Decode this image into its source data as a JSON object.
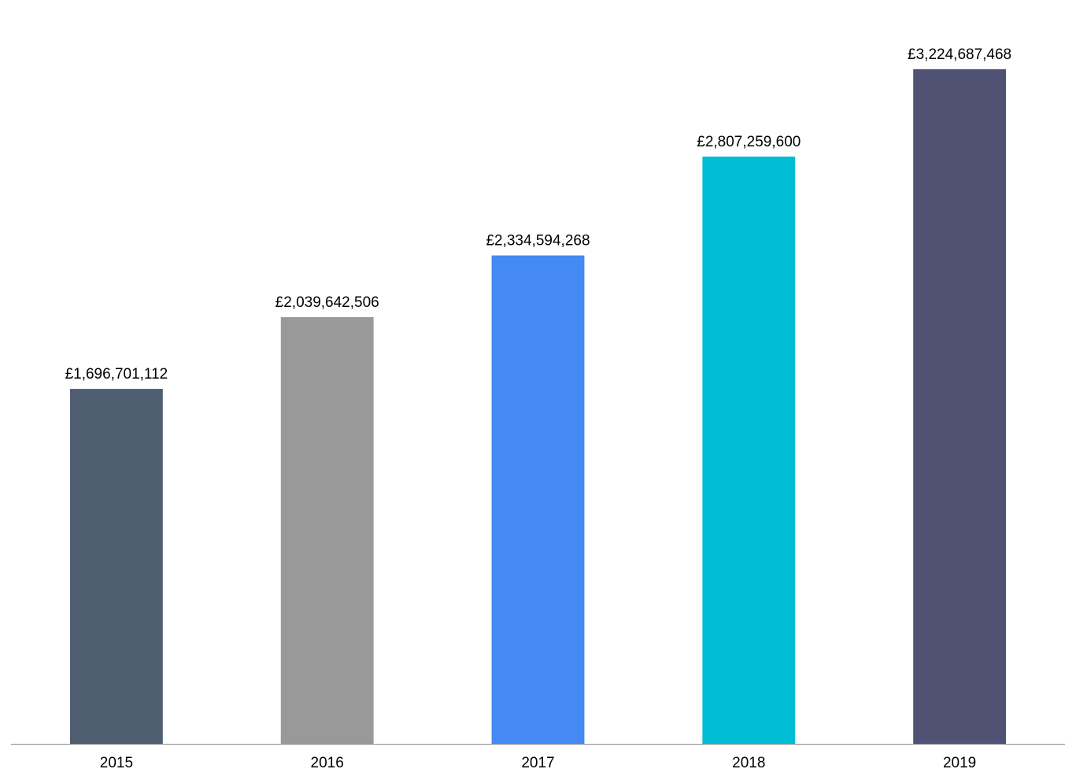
{
  "chart_data": {
    "type": "bar",
    "categories": [
      "2015",
      "2016",
      "2017",
      "2018",
      "2019"
    ],
    "values": [
      1696701112,
      2039642506,
      2334594268,
      2807259600,
      3224687468
    ],
    "value_labels": [
      "£1,696,701,112",
      "£2,039,642,506",
      "£2,334,594,268",
      "£2,807,259,600",
      "£3,224,687,468"
    ],
    "colors": [
      "#4f5e71",
      "#999999",
      "#4589f4",
      "#00bcd4",
      "#505274"
    ]
  }
}
